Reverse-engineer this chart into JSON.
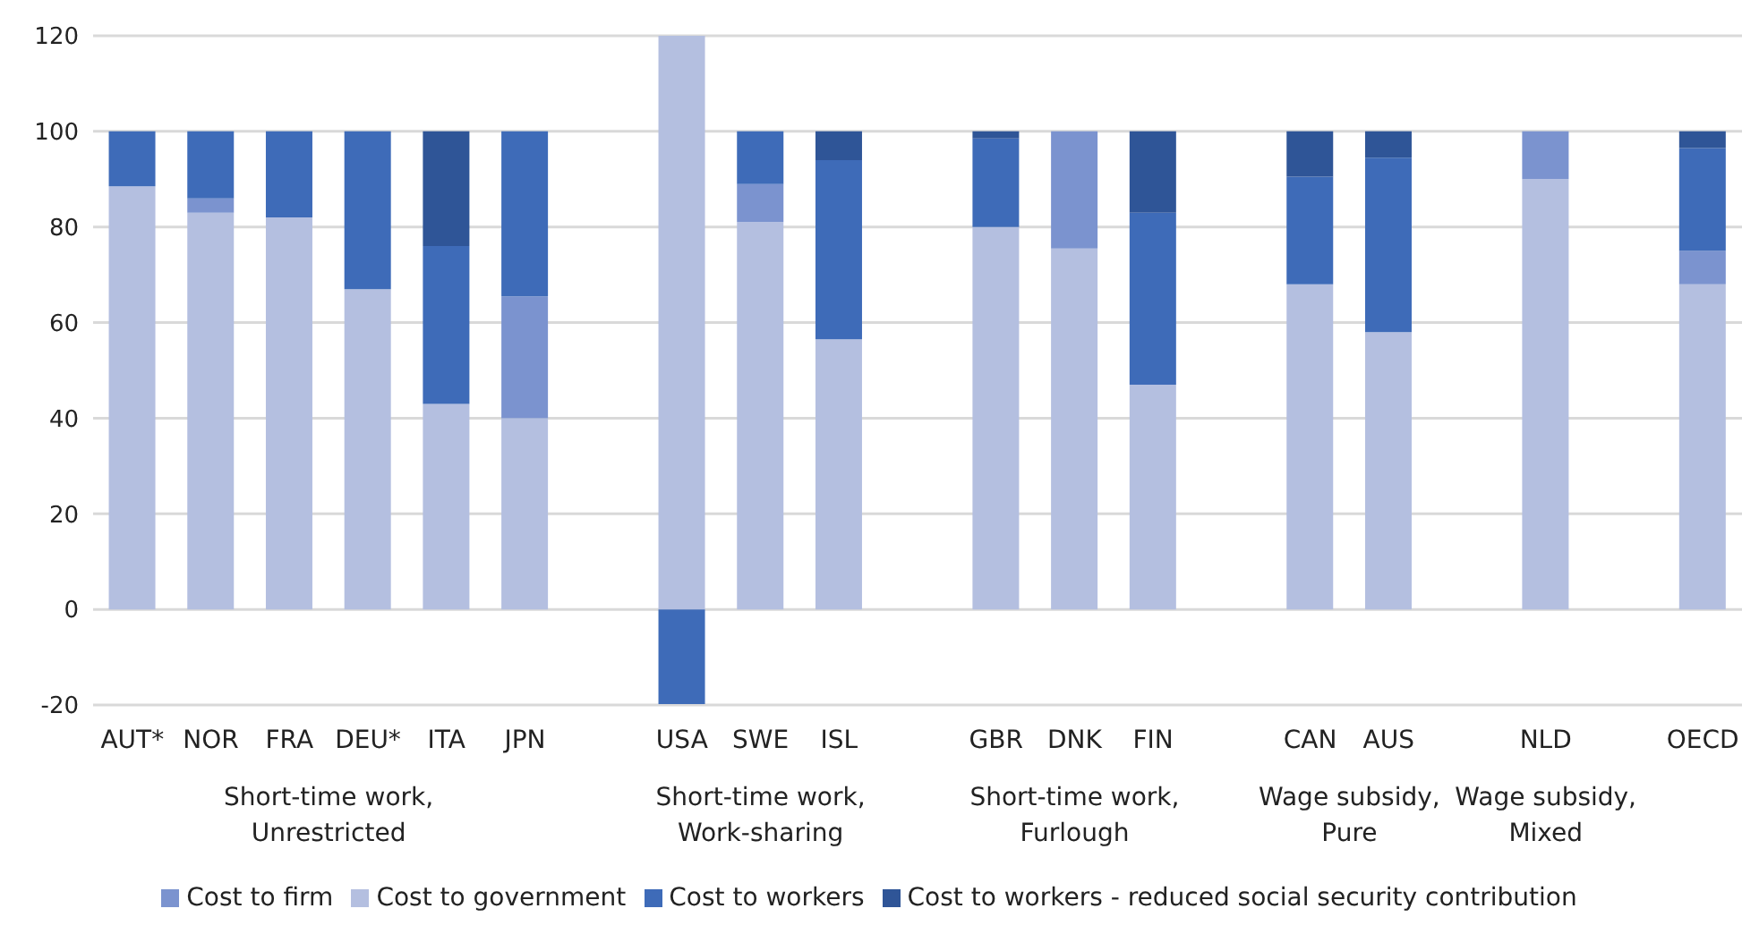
{
  "chart_data": {
    "type": "bar",
    "stacked": true,
    "categories": [
      "AUT*",
      "NOR",
      "FRA",
      "DEU*",
      "ITA",
      "JPN",
      null,
      "USA",
      "SWE",
      "ISL",
      null,
      "GBR",
      "DNK",
      "FIN",
      null,
      "CAN",
      "AUS",
      null,
      "NLD",
      null,
      "OECD"
    ],
    "series": [
      {
        "name": "Cost to government",
        "color": "#b4bfe0",
        "values": [
          88.5,
          83,
          82,
          67,
          43,
          40,
          null,
          120,
          81,
          56.5,
          null,
          80,
          75.5,
          47,
          null,
          68,
          58,
          null,
          90,
          null,
          68
        ]
      },
      {
        "name": "Cost to firm",
        "color": "#7b93cf",
        "values": [
          0,
          3,
          0,
          0,
          0,
          25.5,
          null,
          0,
          8,
          0,
          null,
          0,
          24.5,
          0,
          null,
          0,
          0,
          null,
          10,
          null,
          7
        ]
      },
      {
        "name": "Cost to workers",
        "color": "#3e6bb8",
        "values": [
          11.5,
          14,
          18,
          33,
          33,
          34.5,
          null,
          -20,
          11,
          37.5,
          null,
          18.5,
          0,
          36,
          null,
          22.5,
          36.5,
          null,
          0,
          null,
          21.5
        ]
      },
      {
        "name": "Cost to workers - reduced social security contribution",
        "color": "#2f5597",
        "values": [
          0,
          0,
          0,
          0,
          24,
          0,
          null,
          0,
          0,
          6,
          null,
          1.5,
          0,
          17,
          null,
          9.5,
          5.5,
          null,
          0,
          null,
          3.5
        ]
      }
    ],
    "annotations": [
      "Short-time work, Unrestricted",
      "Short-time work, Work-sharing",
      "Short-time work, Furlough",
      "Wage subsidy, Pure",
      "Wage subsidy, Mixed"
    ],
    "ylim": [
      -20,
      120
    ],
    "yticks": [
      -20,
      0,
      20,
      40,
      60,
      80,
      100,
      120
    ],
    "grid": "y",
    "legend": "bottom"
  }
}
